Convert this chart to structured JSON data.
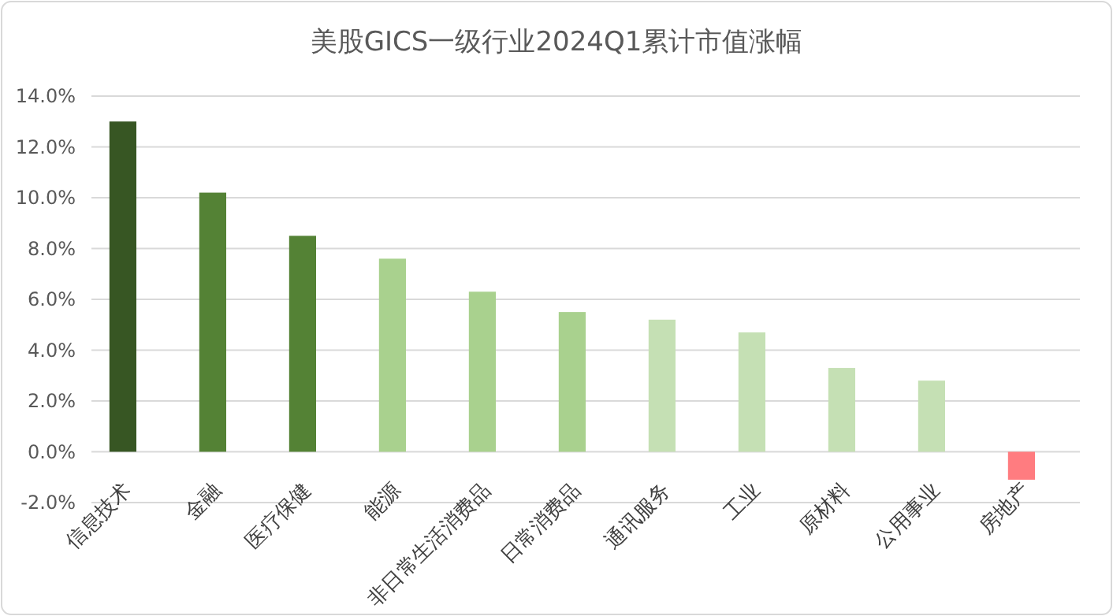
{
  "chart_data": {
    "type": "bar",
    "title": "美股GICS一级行业2024Q1累计市值涨幅",
    "categories": [
      "信息技术",
      "金融",
      "医疗保健",
      "能源",
      "非日常生活消费品",
      "日常消费品",
      "通讯服务",
      "工业",
      "原材料",
      "公用事业",
      "房地产"
    ],
    "values": [
      13.0,
      10.2,
      8.5,
      7.6,
      6.3,
      5.5,
      5.2,
      4.7,
      3.3,
      2.8,
      -1.1
    ],
    "colors": [
      "#375623",
      "#548235",
      "#548235",
      "#a9d18e",
      "#a9d18e",
      "#a9d18e",
      "#c5e0b4",
      "#c5e0b4",
      "#c5e0b4",
      "#c5e0b4",
      "#ff7c80"
    ],
    "ylim": [
      -2,
      14
    ],
    "yticks": [
      {
        "value": -2,
        "label": "-2.0%"
      },
      {
        "value": 0,
        "label": "0.0%"
      },
      {
        "value": 2,
        "label": "2.0%"
      },
      {
        "value": 4,
        "label": "4.0%"
      },
      {
        "value": 6,
        "label": "6.0%"
      },
      {
        "value": 8,
        "label": "8.0%"
      },
      {
        "value": 10,
        "label": "10.0%"
      },
      {
        "value": 12,
        "label": "12.0%"
      },
      {
        "value": 14,
        "label": "14.0%"
      }
    ],
    "grid": "y"
  }
}
